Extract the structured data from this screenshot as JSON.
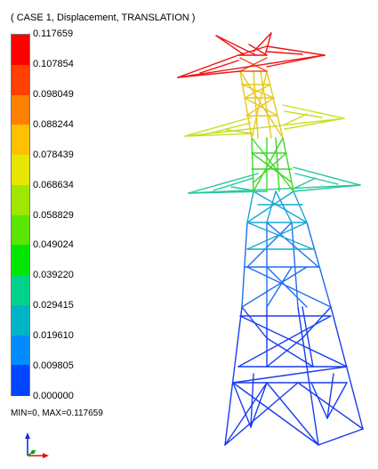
{
  "viewer": {
    "title": "( CASE 1, Displacement, TRANSLATION )",
    "min_max_label": "MIN=0, MAX=0.117659"
  },
  "legend": {
    "ticks": [
      "0.117659",
      "0.107854",
      "0.098049",
      "0.088244",
      "0.078439",
      "0.068634",
      "0.058829",
      "0.049024",
      "0.039220",
      "0.029415",
      "0.019610",
      "0.009805",
      "0.000000"
    ],
    "band_colors": [
      "#ff0000",
      "#ff4000",
      "#ff8000",
      "#ffc000",
      "#e6e600",
      "#a0e600",
      "#5ae600",
      "#00e600",
      "#00d28c",
      "#00b4c8",
      "#008cff",
      "#0046ff"
    ]
  },
  "axis_triad": {
    "x_color": "#e01010",
    "y_color": "#10a010",
    "z_color": "#1030e0"
  }
}
